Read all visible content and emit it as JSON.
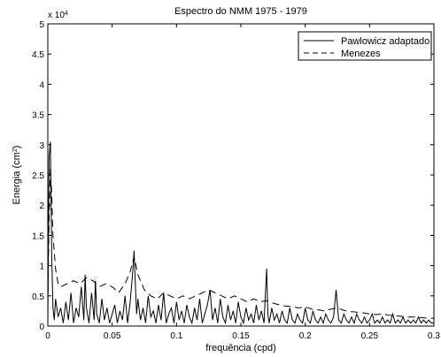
{
  "chart_data": {
    "type": "line",
    "title": "Espectro do NMM 1975 - 1979",
    "xlabel": "frequência (cpd)",
    "ylabel_base": "Energia (cm",
    "ylabel_sup": "2",
    "ylabel_close": ")",
    "y_exponent_base": "x 10",
    "y_exponent_power": "4",
    "xlim": [
      0,
      0.3
    ],
    "ylim": [
      0,
      5
    ],
    "x_ticks": [
      0,
      0.05,
      0.1,
      0.15,
      0.2,
      0.25,
      0.3
    ],
    "x_tick_labels": [
      "0",
      "0.05",
      "0.1",
      "0.15",
      "0.2",
      "0.25",
      "0.3"
    ],
    "y_ticks": [
      0,
      0.5,
      1,
      1.5,
      2,
      2.5,
      3,
      3.5,
      4,
      4.5,
      5
    ],
    "y_tick_labels": [
      "0",
      "0.5",
      "1",
      "1.5",
      "2",
      "2.5",
      "3",
      "3.5",
      "4",
      "4.5",
      "5"
    ],
    "legend_position": "top-right",
    "series": [
      {
        "name": "Pawlowicz adaptado",
        "style": "solid",
        "color": "#000000",
        "x": [
          0,
          0.001,
          0.002,
          0.003,
          0.004,
          0.005,
          0.006,
          0.008,
          0.01,
          0.012,
          0.014,
          0.016,
          0.018,
          0.02,
          0.022,
          0.024,
          0.026,
          0.028,
          0.029,
          0.03,
          0.032,
          0.034,
          0.036,
          0.037,
          0.038,
          0.04,
          0.042,
          0.044,
          0.046,
          0.048,
          0.05,
          0.052,
          0.054,
          0.056,
          0.058,
          0.06,
          0.062,
          0.064,
          0.066,
          0.067,
          0.068,
          0.069,
          0.07,
          0.072,
          0.074,
          0.076,
          0.078,
          0.08,
          0.082,
          0.084,
          0.086,
          0.088,
          0.09,
          0.092,
          0.094,
          0.096,
          0.098,
          0.1,
          0.102,
          0.104,
          0.106,
          0.108,
          0.11,
          0.112,
          0.114,
          0.116,
          0.118,
          0.12,
          0.122,
          0.124,
          0.126,
          0.128,
          0.13,
          0.132,
          0.134,
          0.136,
          0.138,
          0.14,
          0.142,
          0.144,
          0.146,
          0.148,
          0.15,
          0.152,
          0.154,
          0.156,
          0.158,
          0.16,
          0.162,
          0.164,
          0.166,
          0.168,
          0.17,
          0.171,
          0.172,
          0.174,
          0.176,
          0.178,
          0.18,
          0.182,
          0.184,
          0.186,
          0.188,
          0.19,
          0.192,
          0.194,
          0.196,
          0.198,
          0.2,
          0.202,
          0.204,
          0.206,
          0.208,
          0.21,
          0.212,
          0.214,
          0.216,
          0.218,
          0.22,
          0.222,
          0.224,
          0.226,
          0.228,
          0.23,
          0.232,
          0.234,
          0.236,
          0.238,
          0.24,
          0.242,
          0.244,
          0.246,
          0.248,
          0.25,
          0.252,
          0.254,
          0.256,
          0.258,
          0.26,
          0.262,
          0.264,
          0.266,
          0.268,
          0.27,
          0.272,
          0.274,
          0.276,
          0.278,
          0.28,
          0.282,
          0.284,
          0.286,
          0.288,
          0.29,
          0.292,
          0.294,
          0.296,
          0.298,
          0.3
        ],
        "y": [
          0.05,
          2.8,
          3.05,
          1.2,
          0.3,
          0.1,
          0.45,
          0.15,
          0.3,
          0.05,
          0.4,
          0.1,
          0.55,
          0.05,
          0.3,
          0.15,
          0.65,
          0.1,
          0.85,
          0.3,
          0.05,
          0.55,
          0.1,
          0.75,
          0.2,
          0.05,
          0.45,
          0.1,
          0.3,
          0.05,
          0.2,
          0.35,
          0.05,
          0.25,
          0.1,
          0.5,
          0.05,
          0.4,
          0.9,
          1.25,
          0.7,
          0.2,
          0.45,
          0.1,
          0.3,
          0.05,
          0.5,
          0.15,
          0.25,
          0.05,
          0.35,
          0.1,
          0.55,
          0.05,
          0.2,
          0.3,
          0.05,
          0.4,
          0.1,
          0.25,
          0.05,
          0.35,
          0.15,
          0.05,
          0.3,
          0.1,
          0.45,
          0.05,
          0.2,
          0.35,
          0.6,
          0.1,
          0.3,
          0.05,
          0.45,
          0.15,
          0.05,
          0.35,
          0.1,
          0.25,
          0.05,
          0.4,
          0.15,
          0.05,
          0.3,
          0.1,
          0.2,
          0.05,
          0.35,
          0.1,
          0.25,
          0.05,
          0.95,
          0.2,
          0.05,
          0.3,
          0.1,
          0.2,
          0.05,
          0.25,
          0.1,
          0.05,
          0.3,
          0.1,
          0.05,
          0.2,
          0.1,
          0.05,
          0.3,
          0.1,
          0.05,
          0.25,
          0.1,
          0.05,
          0.15,
          0.05,
          0.2,
          0.1,
          0.05,
          0.15,
          0.6,
          0.1,
          0.05,
          0.2,
          0.1,
          0.05,
          0.15,
          0.05,
          0.2,
          0.1,
          0.05,
          0.15,
          0.05,
          0.1,
          0.2,
          0.05,
          0.1,
          0.05,
          0.15,
          0.05,
          0.1,
          0.05,
          0.2,
          0.05,
          0.1,
          0.05,
          0.15,
          0.05,
          0.1,
          0.05,
          0.1,
          0.05,
          0.15,
          0.05,
          0.1,
          0.05,
          0.1,
          0.05,
          0.05
        ]
      },
      {
        "name": "Menezes",
        "style": "dashed",
        "color": "#000000",
        "x": [
          0,
          0.001,
          0.002,
          0.003,
          0.004,
          0.006,
          0.008,
          0.01,
          0.015,
          0.02,
          0.025,
          0.03,
          0.035,
          0.04,
          0.045,
          0.05,
          0.055,
          0.06,
          0.064,
          0.067,
          0.07,
          0.075,
          0.08,
          0.085,
          0.09,
          0.095,
          0.1,
          0.105,
          0.11,
          0.115,
          0.12,
          0.125,
          0.13,
          0.135,
          0.14,
          0.145,
          0.15,
          0.155,
          0.16,
          0.165,
          0.17,
          0.175,
          0.18,
          0.185,
          0.19,
          0.195,
          0.2,
          0.205,
          0.21,
          0.215,
          0.22,
          0.225,
          0.23,
          0.235,
          0.24,
          0.245,
          0.25,
          0.255,
          0.26,
          0.265,
          0.27,
          0.275,
          0.28,
          0.285,
          0.29,
          0.295,
          0.3
        ],
        "y": [
          0.4,
          1.8,
          2.6,
          2.2,
          1.5,
          0.95,
          0.7,
          0.65,
          0.7,
          0.75,
          0.7,
          0.8,
          0.75,
          0.65,
          0.7,
          0.65,
          0.55,
          0.7,
          0.9,
          1.15,
          0.85,
          0.6,
          0.5,
          0.45,
          0.55,
          0.5,
          0.45,
          0.5,
          0.45,
          0.5,
          0.55,
          0.6,
          0.55,
          0.5,
          0.45,
          0.5,
          0.45,
          0.4,
          0.45,
          0.4,
          0.42,
          0.38,
          0.35,
          0.33,
          0.32,
          0.3,
          0.32,
          0.28,
          0.27,
          0.25,
          0.28,
          0.3,
          0.26,
          0.24,
          0.23,
          0.22,
          0.2,
          0.19,
          0.2,
          0.18,
          0.17,
          0.16,
          0.15,
          0.15,
          0.14,
          0.13,
          0.13
        ]
      }
    ]
  }
}
